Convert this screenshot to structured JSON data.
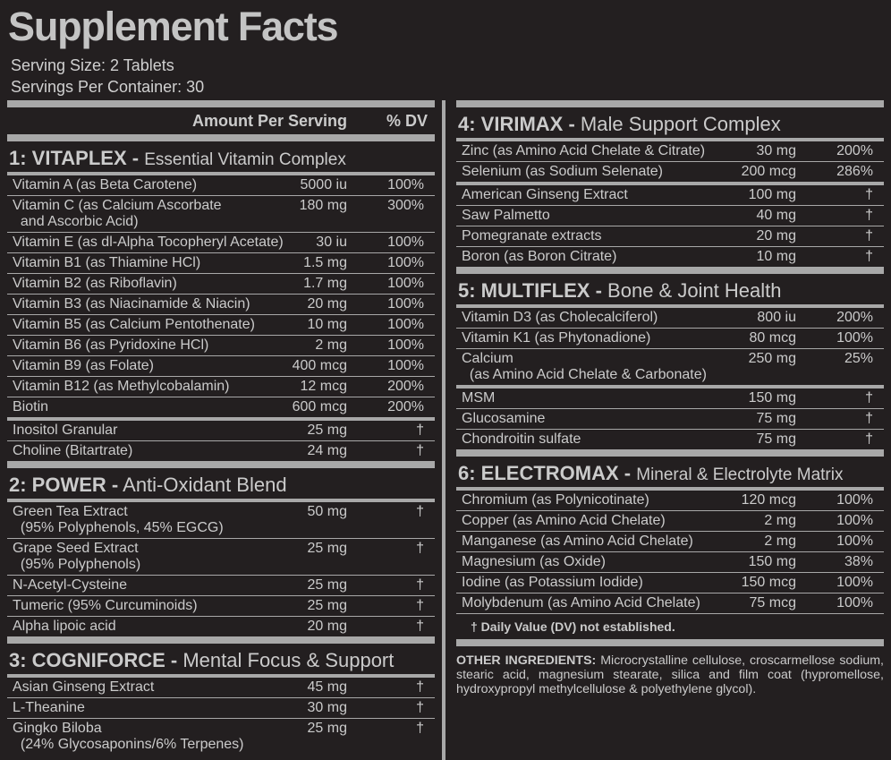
{
  "header": {
    "title": "Supplement Facts",
    "serving_size": "Serving Size: 2 Tablets",
    "servings_per_container": "Servings Per Container: 30"
  },
  "columns": [
    {
      "column_headers": {
        "amount": "Amount Per Serving",
        "dv": "% DV"
      },
      "sections": [
        {
          "title": "1: VITAPLEX -",
          "subtitle": "Essential Vitamin Complex",
          "groups": [
            [
              [
                "Vitamin A (as Beta Carotene)",
                "5000 iu",
                "100%"
              ],
              [
                "Vitamin C (as Calcium Ascorbate\n  and Ascorbic Acid)",
                "180 mg",
                "300%"
              ],
              [
                "Vitamin E (as dl-Alpha Tocopheryl Acetate)",
                "30 iu",
                "100%"
              ],
              [
                "Vitamin B1 (as Thiamine HCl)",
                "1.5 mg",
                "100%"
              ],
              [
                "Vitamin B2 (as Riboflavin)",
                "1.7 mg",
                "100%"
              ],
              [
                "Vitamin B3 (as Niacinamide & Niacin)",
                "20 mg",
                "100%"
              ],
              [
                "Vitamin B5 (as Calcium Pentothenate)",
                "10 mg",
                "100%"
              ],
              [
                "Vitamin B6 (as Pyridoxine HCl)",
                "2 mg",
                "100%"
              ],
              [
                "Vitamin B9 (as Folate)",
                "400 mcg",
                "100%"
              ],
              [
                "Vitamin B12 (as Methylcobalamin)",
                "12 mcg",
                "200%"
              ],
              [
                "Biotin",
                "600 mcg",
                "200%"
              ]
            ],
            [
              [
                "Inositol Granular",
                "25 mg",
                "†"
              ],
              [
                "Choline (Bitartrate)",
                "24 mg",
                "†"
              ]
            ]
          ]
        },
        {
          "title": "2: POWER -",
          "subtitle": "Anti-Oxidant Blend",
          "groups": [
            [
              [
                "Green Tea Extract\n  (95% Polyphenols, 45% EGCG)",
                "50 mg",
                "†"
              ],
              [
                "Grape Seed Extract\n  (95% Polyphenols)",
                "25 mg",
                "†"
              ],
              [
                "N-Acetyl-Cysteine",
                "25 mg",
                "†"
              ],
              [
                "Tumeric (95% Curcuminoids)",
                "25 mg",
                "†"
              ],
              [
                "Alpha lipoic acid",
                "20 mg",
                "†"
              ]
            ]
          ]
        },
        {
          "title": "3: COGNIFORCE -",
          "subtitle": "Mental Focus & Support",
          "groups": [
            [
              [
                "Asian Ginseng Extract",
                "45 mg",
                "†"
              ],
              [
                "L-Theanine",
                "30 mg",
                "†"
              ],
              [
                "Gingko Biloba\n  (24% Glycosaponins/6% Terpenes)",
                "25 mg",
                "†"
              ]
            ]
          ]
        }
      ]
    },
    {
      "sections": [
        {
          "title": "4: VIRIMAX -",
          "subtitle": "Male Support Complex",
          "groups": [
            [
              [
                "Zinc (as Amino Acid Chelate & Citrate)",
                "30 mg",
                "200%"
              ],
              [
                "Selenium (as Sodium Selenate)",
                "200 mcg",
                "286%"
              ]
            ],
            [
              [
                "American Ginseng Extract",
                "100 mg",
                "†"
              ],
              [
                "Saw Palmetto",
                "40 mg",
                "†"
              ],
              [
                "Pomegranate extracts",
                "20 mg",
                "†"
              ],
              [
                "Boron (as Boron Citrate)",
                "10 mg",
                "†"
              ]
            ]
          ]
        },
        {
          "title": "5: MULTIFLEX -",
          "subtitle": "Bone & Joint Health",
          "groups": [
            [
              [
                "Vitamin D3 (as Cholecalciferol)",
                "800 iu",
                "200%"
              ],
              [
                "Vitamin K1 (as Phytonadione)",
                "80 mcg",
                "100%"
              ],
              [
                "Calcium\n  (as Amino Acid Chelate & Carbonate)",
                "250 mg",
                "25%"
              ]
            ],
            [
              [
                "MSM",
                "150 mg",
                "†"
              ],
              [
                "Glucosamine",
                "75 mg",
                "†"
              ],
              [
                "Chondroitin sulfate",
                "75 mg",
                "†"
              ]
            ]
          ]
        },
        {
          "title": "6: ELECTROMAX -",
          "subtitle": "Mineral & Electrolyte Matrix",
          "groups": [
            [
              [
                "Chromium (as Polynicotinate)",
                "120 mcg",
                "100%"
              ],
              [
                "Copper (as Amino Acid Chelate)",
                "2 mg",
                "100%"
              ],
              [
                "Manganese (as Amino Acid Chelate)",
                "2 mg",
                "100%"
              ],
              [
                "Magnesium (as Oxide)",
                "150 mg",
                "38%"
              ],
              [
                "Iodine (as Potassium Iodide)",
                "150 mcg",
                "100%"
              ],
              [
                "Molybdenum (as Amino Acid Chelate)",
                "75 mcg",
                "100%"
              ]
            ]
          ]
        }
      ],
      "footnote": "† Daily Value (DV) not established.",
      "other_ingredients": {
        "label": "OTHER INGREDIENTS:",
        "text": "Microcrystalline cellulose, croscarmellose sodium, stearic acid, magnesium stearate, silica and film coat (hypromellose, hydroxypropyl methylcellulose & polyethylene glycol)."
      }
    }
  ]
}
